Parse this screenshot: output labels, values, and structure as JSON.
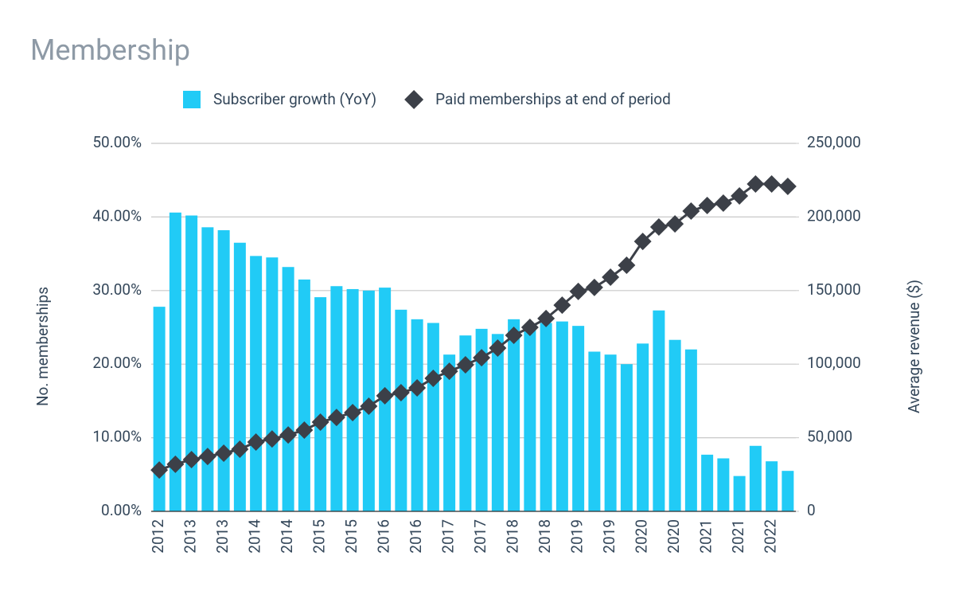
{
  "chart_data": {
    "type": "combo",
    "title": "Membership",
    "y_label": "No. memberships",
    "y2_label": "Average revenue ($)",
    "categories": [
      "2012",
      null,
      "2013",
      null,
      "2013",
      null,
      "2014",
      null,
      "2014",
      null,
      "2015",
      null,
      "2015",
      null,
      "2016",
      null,
      "2016",
      null,
      "2017",
      null,
      "2017",
      null,
      "2018",
      null,
      "2018",
      null,
      "2019",
      null,
      "2019",
      null,
      "2020",
      null,
      "2020",
      null,
      "2021",
      null,
      "2021",
      null,
      "2022",
      null
    ],
    "series": [
      {
        "name": "Subscriber growth (YoY)",
        "type": "bar",
        "color": "#21cbf6",
        "values": [
          27.8,
          40.6,
          40.2,
          38.6,
          38.2,
          36.5,
          34.7,
          34.5,
          33.2,
          31.5,
          29.1,
          30.6,
          30.2,
          30.0,
          30.4,
          27.4,
          26.1,
          25.6,
          21.3,
          23.9,
          24.8,
          24.1,
          26.1,
          25.0,
          25.6,
          25.8,
          25.2,
          21.7,
          21.3,
          20.0,
          22.8,
          27.3,
          23.3,
          22.0,
          7.7,
          7.2,
          4.8,
          8.9,
          6.8,
          5.5
        ]
      },
      {
        "name": "Paid memberships at end of period",
        "type": "line",
        "axis": "y2",
        "color": "#3c4048",
        "values": [
          28100,
          32000,
          35200,
          37300,
          39500,
          42200,
          47100,
          49200,
          51900,
          55200,
          60600,
          63800,
          67100,
          71400,
          78500,
          80600,
          83900,
          90400,
          95200,
          99600,
          104400,
          110900,
          119600,
          125000,
          131000,
          140100,
          149400,
          152100,
          159100,
          167200,
          183400,
          193200,
          195300,
          204000,
          207800,
          209400,
          214300,
          222400,
          222400,
          220800
        ]
      }
    ],
    "ylim": [
      0,
      50
    ],
    "yticks": [
      {
        "value": 0,
        "label": "0.00%"
      },
      {
        "value": 10,
        "label": "10.00%"
      },
      {
        "value": 20,
        "label": "20.00%"
      },
      {
        "value": 30,
        "label": "30.00%"
      },
      {
        "value": 40,
        "label": "40.00%"
      },
      {
        "value": 50,
        "label": "50.00%"
      }
    ],
    "y2lim": [
      0,
      250000
    ],
    "y2ticks": [
      0,
      {
        "value": 50000,
        "label": "50,000"
      },
      {
        "value": 100000,
        "label": "100,000"
      },
      {
        "value": 150000,
        "label": "150,000"
      },
      {
        "value": 200000,
        "label": "200,000"
      },
      {
        "value": 250000,
        "label": "250,000"
      }
    ],
    "grid": true,
    "legend": "top"
  }
}
